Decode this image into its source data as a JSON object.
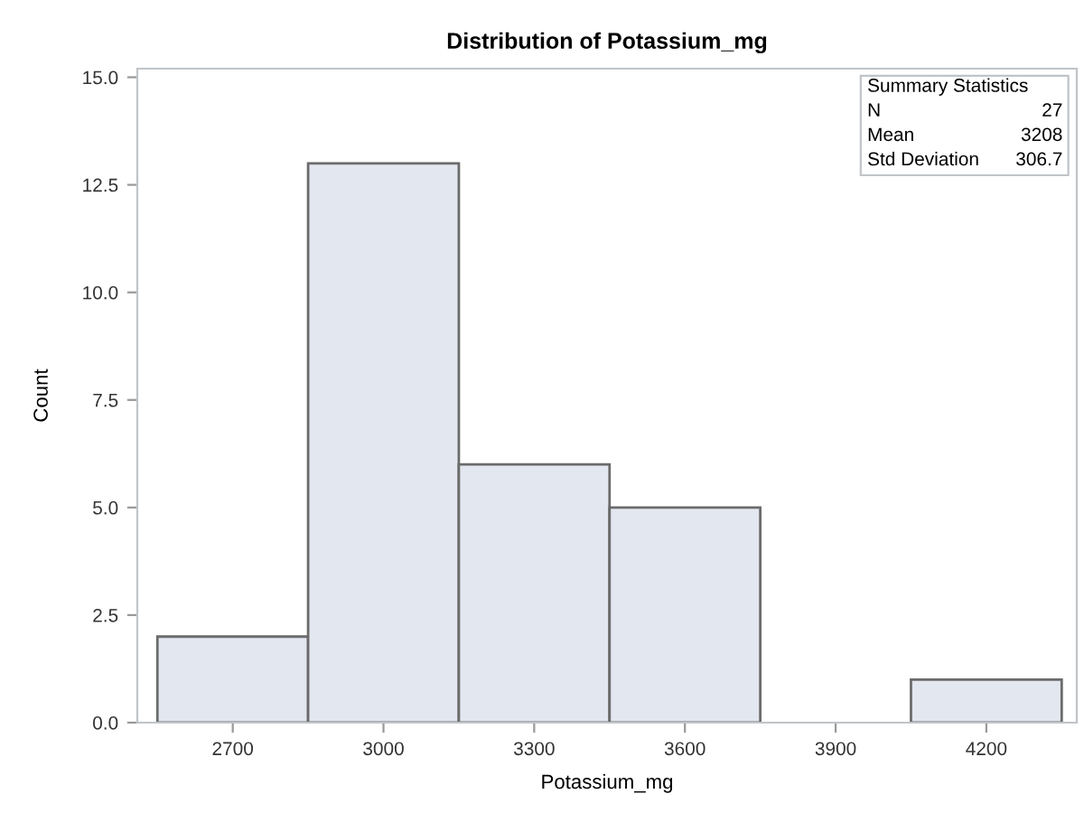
{
  "chart_data": {
    "type": "histogram",
    "title": "Distribution of Potassium_mg",
    "xlabel": "Potassium_mg",
    "ylabel": "Count",
    "bins": [
      2550,
      2850,
      3150,
      3450,
      3750,
      4050,
      4350
    ],
    "values": [
      2,
      13,
      6,
      5,
      0,
      1
    ],
    "color": "#e3e7f0",
    "xlim": [
      2510,
      4380
    ],
    "xticks": [
      2700,
      3000,
      3300,
      3600,
      3900,
      4200
    ],
    "ylim": [
      0,
      15.2
    ],
    "yticks": [
      {
        "value": 0,
        "label": "0.0"
      },
      {
        "value": 2.5,
        "label": "2.5"
      },
      {
        "value": 5,
        "label": "5.0"
      },
      {
        "value": 7.5,
        "label": "7.5"
      },
      {
        "value": 10,
        "label": "10.0"
      },
      {
        "value": 12.5,
        "label": "12.5"
      },
      {
        "value": 15,
        "label": "15.0"
      }
    ],
    "grid": false,
    "annotations": [
      "Summary Statistics",
      "N",
      "27",
      "Mean",
      "3208",
      "Std Deviation",
      "306.7"
    ]
  }
}
